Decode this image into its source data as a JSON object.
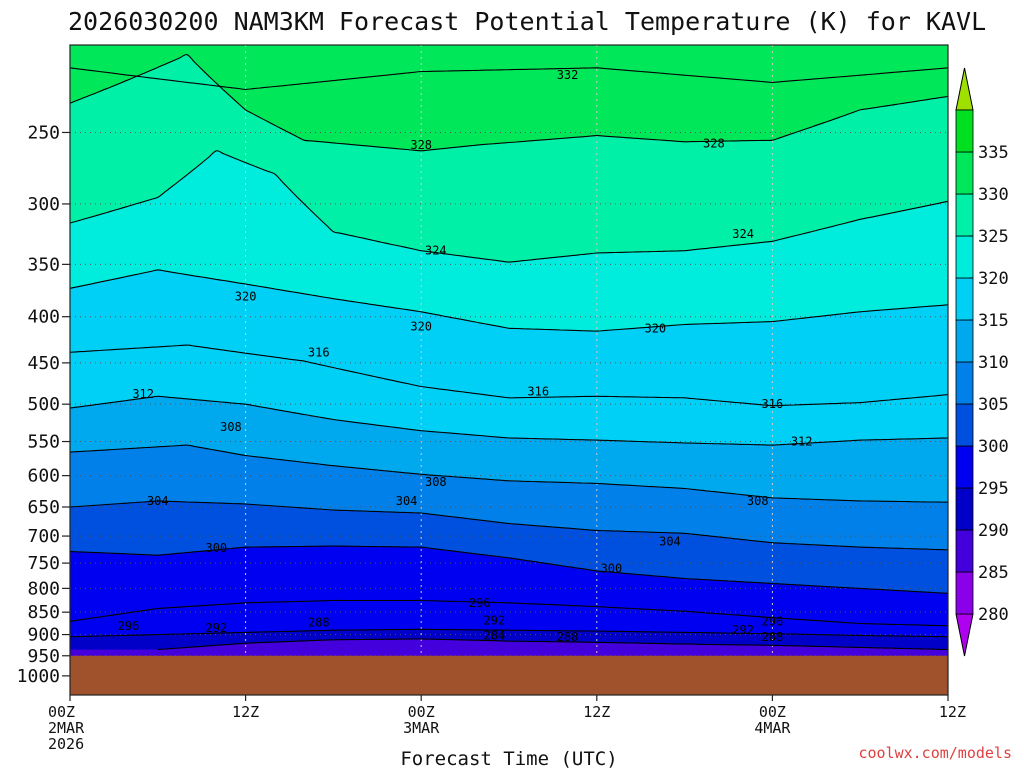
{
  "chart_data": {
    "type": "contour",
    "title": "2026030200 NAM3KM Forecast Potential Temperature (K) for KAVL",
    "xlabel": "Forecast Time (UTC)",
    "ylabel": "",
    "y_axis": {
      "type": "log-pressure",
      "unit": "hPa",
      "range": [
        1050,
        200
      ],
      "ticks": [
        250,
        300,
        350,
        400,
        450,
        500,
        550,
        600,
        650,
        700,
        750,
        800,
        850,
        900,
        950,
        1000
      ]
    },
    "x_axis": {
      "range_hours": [
        0,
        60
      ],
      "ticks": [
        {
          "hour": 0,
          "lines": [
            "00Z",
            "2MAR",
            "2026"
          ]
        },
        {
          "hour": 12,
          "lines": [
            "12Z"
          ]
        },
        {
          "hour": 24,
          "lines": [
            "00Z",
            "3MAR"
          ]
        },
        {
          "hour": 36,
          "lines": [
            "12Z"
          ]
        },
        {
          "hour": 48,
          "lines": [
            "00Z",
            "4MAR"
          ]
        },
        {
          "hour": 60,
          "lines": [
            "12Z"
          ]
        }
      ]
    },
    "surface_pressure_hPa": 950,
    "colorbar": {
      "levels": [
        280,
        285,
        290,
        295,
        300,
        305,
        310,
        315,
        320,
        325,
        330,
        335
      ],
      "colors": [
        "#b000f0",
        "#8a00e8",
        "#4400dc",
        "#0000c8",
        "#0000f0",
        "#0050e0",
        "#0080e8",
        "#00a8ee",
        "#00d0f6",
        "#00ecdc",
        "#00f0a8",
        "#00e85a",
        "#00e020",
        "#a0e000"
      ],
      "label_levels": [
        280,
        285,
        290,
        295,
        300,
        305,
        310,
        315,
        320,
        325,
        330,
        335
      ]
    },
    "series": [
      {
        "name": "theta_332",
        "level": 332,
        "points": [
          [
            0,
            212
          ],
          [
            12,
            224
          ],
          [
            24,
            214
          ],
          [
            36,
            212
          ],
          [
            48,
            220
          ],
          [
            60,
            212
          ]
        ]
      },
      {
        "name": "theta_328",
        "level": 328,
        "points": [
          [
            0,
            232
          ],
          [
            8,
            205
          ],
          [
            12,
            236
          ],
          [
            16,
            255
          ],
          [
            24,
            262
          ],
          [
            28,
            258
          ],
          [
            36,
            252
          ],
          [
            42,
            256
          ],
          [
            48,
            255
          ],
          [
            54,
            236
          ],
          [
            60,
            228
          ]
        ]
      },
      {
        "name": "theta_324",
        "level": 324,
        "points": [
          [
            0,
            315
          ],
          [
            6,
            295
          ],
          [
            10,
            262
          ],
          [
            14,
            278
          ],
          [
            18,
            322
          ],
          [
            24,
            338
          ],
          [
            30,
            348
          ],
          [
            36,
            340
          ],
          [
            42,
            338
          ],
          [
            48,
            330
          ],
          [
            54,
            312
          ],
          [
            60,
            298
          ]
        ]
      },
      {
        "name": "theta_320",
        "level": 320,
        "points": [
          [
            0,
            372
          ],
          [
            6,
            355
          ],
          [
            12,
            368
          ],
          [
            18,
            382
          ],
          [
            24,
            395
          ],
          [
            30,
            412
          ],
          [
            36,
            415
          ],
          [
            42,
            408
          ],
          [
            48,
            405
          ],
          [
            54,
            395
          ],
          [
            60,
            388
          ]
        ]
      },
      {
        "name": "theta_316",
        "level": 316,
        "points": [
          [
            0,
            438
          ],
          [
            8,
            430
          ],
          [
            16,
            448
          ],
          [
            24,
            478
          ],
          [
            30,
            492
          ],
          [
            36,
            490
          ],
          [
            42,
            492
          ],
          [
            48,
            502
          ],
          [
            54,
            498
          ],
          [
            60,
            488
          ]
        ]
      },
      {
        "name": "theta_312",
        "level": 312,
        "points": [
          [
            0,
            505
          ],
          [
            6,
            490
          ],
          [
            12,
            500
          ],
          [
            18,
            520
          ],
          [
            24,
            535
          ],
          [
            30,
            545
          ],
          [
            36,
            548
          ],
          [
            42,
            552
          ],
          [
            48,
            555
          ],
          [
            54,
            548
          ],
          [
            60,
            545
          ]
        ]
      },
      {
        "name": "theta_308",
        "level": 308,
        "points": [
          [
            0,
            565
          ],
          [
            8,
            555
          ],
          [
            12,
            570
          ],
          [
            18,
            585
          ],
          [
            24,
            598
          ],
          [
            30,
            608
          ],
          [
            36,
            612
          ],
          [
            42,
            620
          ],
          [
            48,
            635
          ],
          [
            54,
            640
          ],
          [
            60,
            642
          ]
        ]
      },
      {
        "name": "theta_304",
        "level": 304,
        "points": [
          [
            0,
            650
          ],
          [
            6,
            640
          ],
          [
            12,
            645
          ],
          [
            18,
            655
          ],
          [
            24,
            660
          ],
          [
            30,
            678
          ],
          [
            36,
            690
          ],
          [
            42,
            695
          ],
          [
            48,
            712
          ],
          [
            54,
            720
          ],
          [
            60,
            725
          ]
        ]
      },
      {
        "name": "theta_300",
        "level": 300,
        "points": [
          [
            0,
            728
          ],
          [
            6,
            735
          ],
          [
            12,
            720
          ],
          [
            18,
            718
          ],
          [
            24,
            720
          ],
          [
            30,
            740
          ],
          [
            36,
            765
          ],
          [
            42,
            780
          ],
          [
            48,
            790
          ],
          [
            54,
            800
          ],
          [
            60,
            810
          ]
        ]
      },
      {
        "name": "theta_296",
        "level": 296,
        "points": [
          [
            0,
            870
          ],
          [
            6,
            842
          ],
          [
            12,
            830
          ],
          [
            18,
            825
          ],
          [
            24,
            825
          ],
          [
            30,
            830
          ],
          [
            36,
            838
          ],
          [
            42,
            848
          ],
          [
            48,
            862
          ],
          [
            54,
            875
          ],
          [
            60,
            880
          ]
        ]
      },
      {
        "name": "theta_292",
        "level": 292,
        "points": [
          [
            0,
            905
          ],
          [
            6,
            900
          ],
          [
            12,
            895
          ],
          [
            18,
            890
          ],
          [
            24,
            888
          ],
          [
            30,
            890
          ],
          [
            36,
            892
          ],
          [
            42,
            895
          ],
          [
            48,
            898
          ],
          [
            54,
            902
          ],
          [
            60,
            905
          ]
        ]
      },
      {
        "name": "theta_288",
        "level": 288,
        "points": [
          [
            6,
            935
          ],
          [
            12,
            920
          ],
          [
            18,
            912
          ],
          [
            24,
            910
          ],
          [
            30,
            915
          ],
          [
            36,
            918
          ],
          [
            42,
            922
          ],
          [
            48,
            925
          ],
          [
            54,
            930
          ],
          [
            60,
            935
          ]
        ]
      }
    ],
    "contour_labels": [
      {
        "text": "332",
        "hour": 34,
        "p": 216
      },
      {
        "text": "328",
        "hour": 24,
        "p": 258
      },
      {
        "text": "328",
        "hour": 44,
        "p": 257
      },
      {
        "text": "324",
        "hour": 25,
        "p": 338
      },
      {
        "text": "324",
        "hour": 46,
        "p": 324
      },
      {
        "text": "320",
        "hour": 12,
        "p": 380
      },
      {
        "text": "320",
        "hour": 24,
        "p": 410
      },
      {
        "text": "320",
        "hour": 40,
        "p": 412
      },
      {
        "text": "316",
        "hour": 17,
        "p": 438
      },
      {
        "text": "316",
        "hour": 32,
        "p": 484
      },
      {
        "text": "316",
        "hour": 48,
        "p": 500
      },
      {
        "text": "312",
        "hour": 5,
        "p": 487
      },
      {
        "text": "312",
        "hour": 50,
        "p": 550
      },
      {
        "text": "308",
        "hour": 11,
        "p": 530
      },
      {
        "text": "308",
        "hour": 25,
        "p": 610
      },
      {
        "text": "308",
        "hour": 47,
        "p": 640
      },
      {
        "text": "304",
        "hour": 6,
        "p": 640
      },
      {
        "text": "304",
        "hour": 23,
        "p": 640
      },
      {
        "text": "304",
        "hour": 41,
        "p": 710
      },
      {
        "text": "300",
        "hour": 10,
        "p": 722
      },
      {
        "text": "300",
        "hour": 37,
        "p": 760
      },
      {
        "text": "296",
        "hour": 4,
        "p": 880
      },
      {
        "text": "296",
        "hour": 28,
        "p": 830
      },
      {
        "text": "296",
        "hour": 48,
        "p": 870
      },
      {
        "text": "292",
        "hour": 10,
        "p": 885
      },
      {
        "text": "292",
        "hour": 29,
        "p": 868
      },
      {
        "text": "292",
        "hour": 46,
        "p": 890
      },
      {
        "text": "288",
        "hour": 17,
        "p": 873
      },
      {
        "text": "288",
        "hour": 34,
        "p": 906
      },
      {
        "text": "288",
        "hour": 48,
        "p": 906
      },
      {
        "text": "284",
        "hour": 29,
        "p": 902
      }
    ]
  },
  "credit": "coolwx.com/models"
}
